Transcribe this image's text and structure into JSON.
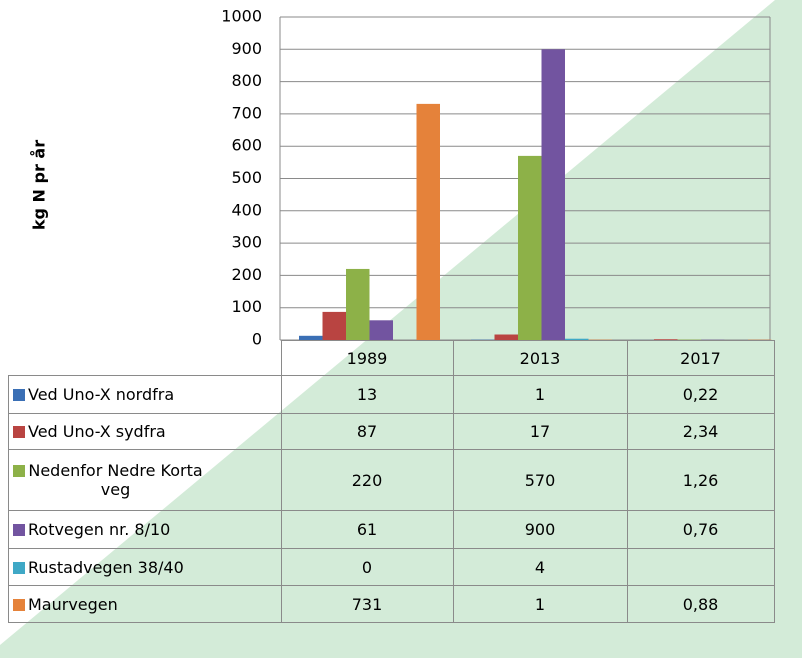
{
  "chart_data": {
    "type": "bar",
    "ylabel": "kg N pr år",
    "categories": [
      "1989",
      "2013",
      "2017"
    ],
    "series": [
      {
        "name": "Ved Uno-X nordfra",
        "color": "#3a6fb5",
        "values": [
          13,
          1,
          0.22
        ],
        "value_labels": [
          "13",
          "1",
          "0,22"
        ]
      },
      {
        "name": "Ved Uno-X sydfra",
        "color": "#b94441",
        "values": [
          87,
          17,
          2.34
        ],
        "value_labels": [
          "87",
          "17",
          "2,34"
        ]
      },
      {
        "name": "Nedenfor Nedre Korta veg",
        "color": "#8db148",
        "values": [
          220,
          570,
          1.26
        ],
        "value_labels": [
          "220",
          "570",
          "1,26"
        ]
      },
      {
        "name": "Rotvegen nr. 8/10",
        "color": "#7254a0",
        "values": [
          61,
          900,
          0.76
        ],
        "value_labels": [
          "61",
          "900",
          "0,76"
        ]
      },
      {
        "name": "Rustadvegen 38/40",
        "color": "#3fa8c6",
        "values": [
          0,
          4,
          null
        ],
        "value_labels": [
          "0",
          "4",
          null
        ]
      },
      {
        "name": "Maurvegen",
        "color": "#e5823a",
        "values": [
          731,
          1,
          0.88
        ],
        "value_labels": [
          "731",
          "1",
          "0,88"
        ]
      }
    ],
    "ylim": [
      0,
      1000
    ],
    "yticks": [
      0,
      100,
      200,
      300,
      400,
      500,
      600,
      700,
      800,
      900,
      1000
    ],
    "grid": true
  }
}
